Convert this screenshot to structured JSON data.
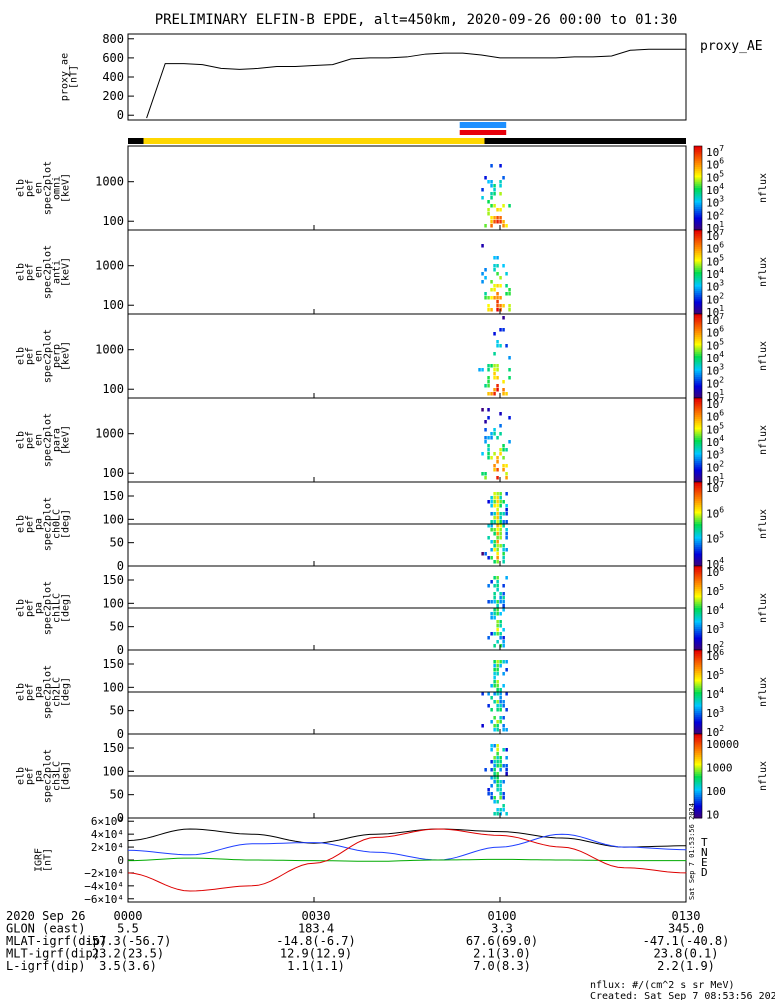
{
  "title": "PRELIMINARY ELFIN-B EPDE, alt=450km, 2020-09-26 00:00 to 01:30",
  "colors": {
    "science_zone": "#ffd700",
    "bar_blue": "#1e90ff",
    "bar_red": "#e8000b",
    "black": "#000000",
    "grf_T": "#000000",
    "grf_N": "#1f3fff",
    "grf_E": "#00aa00",
    "grf_D": "#dd0000"
  },
  "panels": {
    "ae": {
      "label": "proxy_ae [nT]",
      "legend": "proxy_AE"
    },
    "spectra": [
      {
        "name": "omni",
        "label": "elb pef en spec2plot omni [keV]"
      },
      {
        "name": "anti",
        "label": "elb pef en spec2plot anti [keV]"
      },
      {
        "name": "perp",
        "label": "elb pef en spec2plot perp [keV]"
      },
      {
        "name": "para",
        "label": "elb pef en spec2plot para [keV]"
      }
    ],
    "pitch": [
      {
        "name": "ch0LC",
        "label": "elb pef pa spec2plot ch0LC [deg]"
      },
      {
        "name": "ch1LC",
        "label": "elb pef pa spec2plot ch1LC [deg]"
      },
      {
        "name": "ch2LC",
        "label": "elb pef pa spec2plot ch2LC [deg]"
      },
      {
        "name": "ch3LC",
        "label": "elb pef pa spec2plot ch3LC [deg]"
      }
    ],
    "grf": {
      "label": "IGRF [nT]",
      "legend": [
        "T",
        "N",
        "E",
        "D"
      ]
    }
  },
  "colorbars": [
    {
      "unit": "nflux",
      "ticks": [
        "10",
        "10",
        "10",
        "10",
        "10",
        "10",
        "10",
        "10"
      ],
      "exps": [
        "1",
        "2",
        "3",
        "4",
        "5",
        "6",
        "7"
      ]
    },
    {
      "unit": "nflux"
    },
    {
      "unit": "nflux"
    },
    {
      "unit": "nflux"
    },
    {
      "unit": "nflux"
    },
    {
      "unit": "nflux"
    },
    {
      "unit": "nflux"
    },
    {
      "unit": "nflux",
      "ticks": [
        "10000",
        "1000",
        "100",
        "10"
      ]
    }
  ],
  "ephemeris": {
    "rows": [
      {
        "label": "2020 Sep 26",
        "values": [
          "0000",
          "0030",
          "0100",
          "0130"
        ]
      },
      {
        "label": "GLON (east)",
        "values": [
          "5.5",
          "183.4",
          "3.3",
          "345.0"
        ]
      },
      {
        "label": "MLAT-igrf(dip)",
        "values": [
          "-57.3(-56.7)",
          "-14.8(-6.7)",
          "67.6(69.0)",
          "-47.1(-40.8)"
        ]
      },
      {
        "label": "MLT-igrf(dip)",
        "values": [
          "23.2(23.5)",
          "12.9(12.9)",
          "2.1(3.0)",
          "23.8(0.1)"
        ]
      },
      {
        "label": "L-igrf(dip)",
        "values": [
          "3.5(3.6)",
          "1.1(1.1)",
          "7.0(8.3)",
          "2.2(1.9)"
        ]
      }
    ]
  },
  "footer": {
    "nflux_note": "nflux: #/(cm^2 s sr MeV)",
    "created": "Created: Sat Sep  7 08:53:56 2024",
    "side_stamp": "Sat Sep  7 01:53:56 2024"
  },
  "chart_data": [
    {
      "type": "line",
      "name": "proxy_ae",
      "x_range_min": [
        0,
        90
      ],
      "xlabel_ticks": [
        "0000",
        "0030",
        "0100",
        "0130"
      ],
      "ylim": [
        -50,
        850
      ],
      "yticks": [
        "0",
        "200",
        "400",
        "600",
        "800"
      ],
      "series": [
        {
          "name": "proxy_AE",
          "x": [
            3,
            6,
            9,
            12,
            15,
            18,
            21,
            24,
            27,
            30,
            33,
            36,
            39,
            42,
            45,
            48,
            51,
            54,
            57,
            60,
            63,
            66,
            69,
            72,
            75,
            78,
            81,
            84,
            87,
            90
          ],
          "y": [
            -30,
            540,
            540,
            530,
            490,
            480,
            490,
            510,
            510,
            520,
            530,
            590,
            600,
            600,
            610,
            640,
            650,
            650,
            630,
            600,
            600,
            600,
            600,
            610,
            610,
            620,
            680,
            690,
            690,
            690
          ]
        }
      ]
    },
    {
      "type": "heatmap",
      "name": "energy spectrograms",
      "yscale": "log",
      "ylim": [
        60,
        8000
      ],
      "yticks": [
        "100",
        "1000"
      ],
      "zscale": "log",
      "zlim": [
        10,
        10000000
      ],
      "event_x_min": [
        56.5,
        61.5
      ]
    },
    {
      "type": "heatmap",
      "name": "pitch angle spectrograms",
      "ylim": [
        0,
        180
      ],
      "yticks": [
        "0",
        "50",
        "100",
        "150"
      ],
      "reference_line_deg": 90,
      "event_x_min": [
        57,
        61
      ]
    },
    {
      "type": "line",
      "name": "IGRF",
      "ylim": [
        -65000,
        65000
      ],
      "yticks": [
        "6×10⁴",
        "4×10⁴",
        "2×10⁴",
        "0",
        "−2×10⁴",
        "−4×10⁴",
        "−6×10⁴"
      ],
      "series": [
        {
          "name": "T",
          "x": [
            0,
            10,
            20,
            30,
            40,
            50,
            60,
            70,
            80,
            90
          ],
          "y": [
            30000,
            48000,
            40000,
            26000,
            40000,
            48000,
            44000,
            34000,
            20000,
            22000
          ]
        },
        {
          "name": "N",
          "x": [
            0,
            10,
            20,
            30,
            40,
            50,
            60,
            70,
            80,
            90
          ],
          "y": [
            15000,
            8000,
            25000,
            27000,
            12000,
            0,
            20000,
            40000,
            20000,
            16000
          ]
        },
        {
          "name": "E",
          "x": [
            0,
            10,
            20,
            30,
            40,
            50,
            60,
            70,
            80,
            90
          ],
          "y": [
            -1000,
            3000,
            0,
            -1000,
            -2000,
            0,
            1000,
            0,
            -1000,
            -1000
          ]
        },
        {
          "name": "D",
          "x": [
            0,
            10,
            20,
            30,
            40,
            50,
            60,
            70,
            80,
            90
          ],
          "y": [
            -20000,
            -48000,
            -40000,
            -5000,
            35000,
            48000,
            38000,
            20000,
            -12000,
            -20000
          ]
        }
      ]
    }
  ]
}
